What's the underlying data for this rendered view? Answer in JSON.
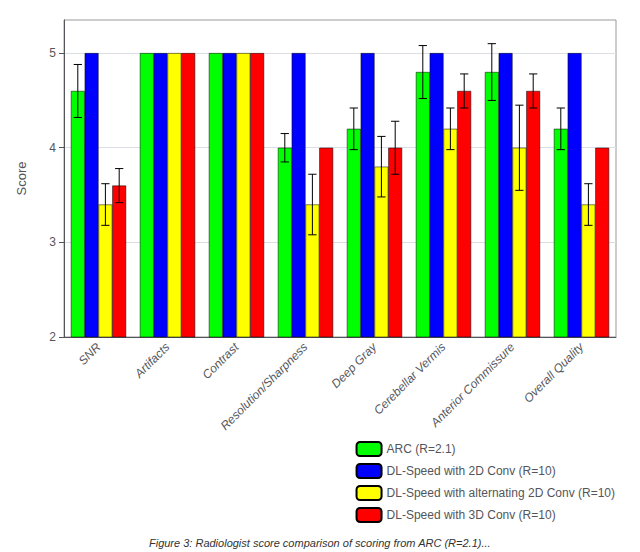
{
  "chart_data": {
    "type": "bar",
    "categories": [
      "SNR",
      "Artifacts",
      "Contrast",
      "Resolution/Sharpness",
      "Deep Gray",
      "Cerebellar Vermis",
      "Anterior Commissure",
      "Overall Quality"
    ],
    "series": [
      {
        "name": "ARC (R=2.1)",
        "color": "#00FF00",
        "values": [
          4.6,
          5.0,
          5.0,
          4.0,
          4.2,
          4.8,
          4.8,
          4.2
        ],
        "errors": [
          0.28,
          0.0,
          0.0,
          0.15,
          0.22,
          0.28,
          0.3,
          0.22
        ]
      },
      {
        "name": "DL-Speed with 2D Conv (R=10)",
        "color": "#0000FF",
        "values": [
          5.0,
          5.0,
          5.0,
          5.0,
          5.0,
          5.0,
          5.0,
          5.0
        ],
        "errors": [
          0.0,
          0.0,
          0.0,
          0.0,
          0.0,
          0.0,
          0.0,
          0.0
        ]
      },
      {
        "name": "DL-Speed with alternating 2D Conv (R=10)",
        "color": "#FFFF00",
        "values": [
          3.4,
          5.0,
          5.0,
          3.4,
          3.8,
          4.2,
          4.0,
          3.4
        ],
        "errors": [
          0.22,
          0.0,
          0.0,
          0.32,
          0.32,
          0.22,
          0.45,
          0.22
        ]
      },
      {
        "name": "DL-Speed with 3D Conv (R=10)",
        "color": "#FF0000",
        "values": [
          3.6,
          5.0,
          5.0,
          4.0,
          4.0,
          4.6,
          4.6,
          4.0
        ],
        "errors": [
          0.18,
          0.0,
          0.0,
          0.0,
          0.28,
          0.18,
          0.18,
          0.0
        ]
      }
    ],
    "ylabel": "Score",
    "ylim": [
      2.0,
      5.35
    ],
    "yticks": [
      2,
      3,
      4,
      5
    ],
    "grid": true,
    "legend": "lower right",
    "caption": "Figure 3: Radiologist score comparison of scoring from ARC (R=2.1)..."
  }
}
